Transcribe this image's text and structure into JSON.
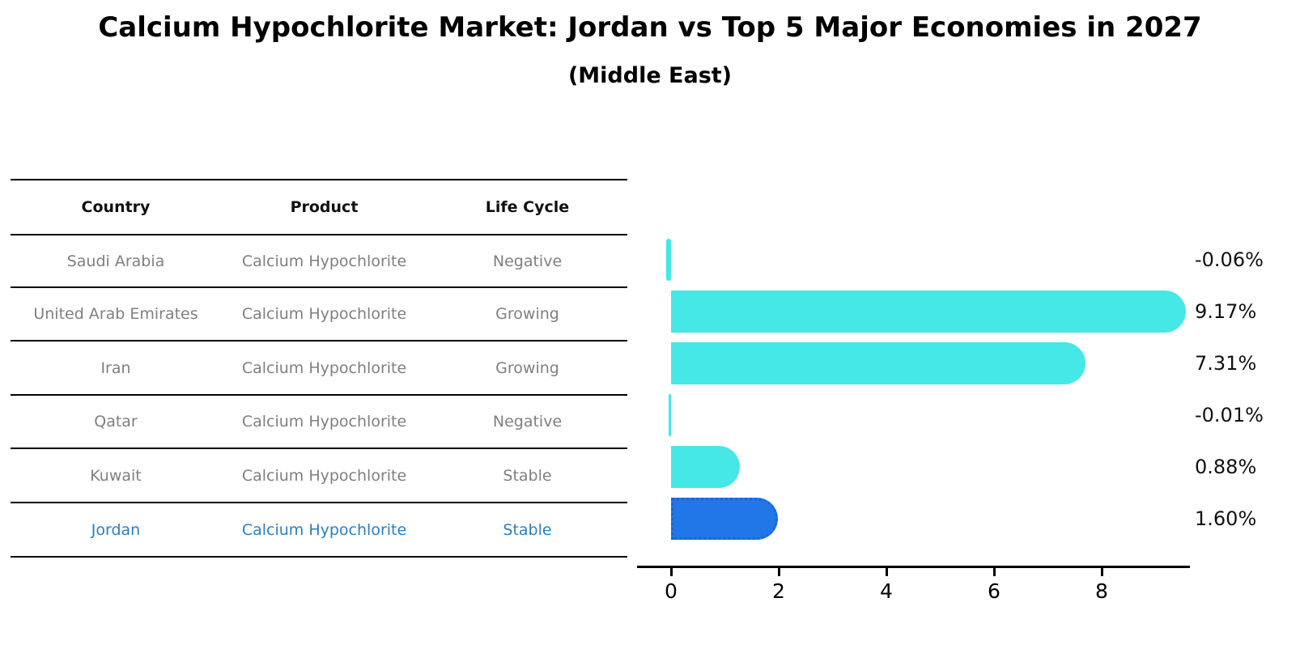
{
  "title": "Calcium Hypochlorite Market: Jordan vs Top 5 Major Economies in 2027",
  "subtitle": "(Middle East)",
  "table": {
    "headers": [
      "Country",
      "Product",
      "Life Cycle"
    ],
    "rows": [
      {
        "country": "Saudi Arabia",
        "product": "Calcium Hypochlorite",
        "life_cycle": "Negative",
        "highlight": false
      },
      {
        "country": "United Arab Emirates",
        "product": "Calcium Hypochlorite",
        "life_cycle": "Growing",
        "highlight": false
      },
      {
        "country": "Iran",
        "product": "Calcium Hypochlorite",
        "life_cycle": "Growing",
        "highlight": false
      },
      {
        "country": "Qatar",
        "product": "Calcium Hypochlorite",
        "life_cycle": "Negative",
        "highlight": false
      },
      {
        "country": "Kuwait",
        "product": "Calcium Hypochlorite",
        "life_cycle": "Stable",
        "highlight": false
      },
      {
        "country": "Jordan",
        "product": "Calcium Hypochlorite",
        "life_cycle": "Stable",
        "highlight": true
      }
    ]
  },
  "chart_data": {
    "type": "bar",
    "orientation": "horizontal",
    "categories": [
      "Saudi Arabia",
      "United Arab Emirates",
      "Iran",
      "Qatar",
      "Kuwait",
      "Jordan"
    ],
    "values": [
      -0.06,
      9.17,
      7.31,
      -0.01,
      0.88,
      1.6
    ],
    "value_labels": [
      "-0.06%",
      "9.17%",
      "7.31%",
      "-0.01%",
      "0.88%",
      "1.60%"
    ],
    "xticks": [
      "0",
      "2",
      "4",
      "6",
      "8"
    ],
    "xtick_values": [
      0,
      2,
      4,
      6,
      8
    ],
    "xlim": [
      -0.55,
      9.65
    ],
    "grid": false,
    "legend": false,
    "title": "Calcium Hypochlorite Market: Jordan vs Top 5 Major Economies in 2027 (Middle East)"
  },
  "colors": {
    "bar": "#45e7e7",
    "highlight_bar": "#2176e8",
    "highlight_text": "#2e7ebc",
    "text": "#111111",
    "muted_text": "#7f7f7f"
  }
}
